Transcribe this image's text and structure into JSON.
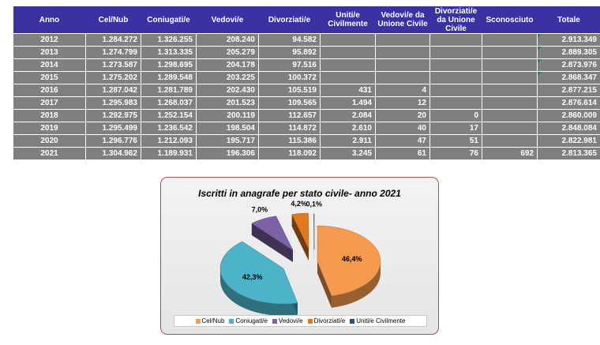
{
  "table": {
    "headers": [
      "Anno",
      "Cel/Nub",
      "Coniugati/e",
      "Vedovi/e",
      "Divorziati/e",
      "Uniti/e Civilmente",
      "Vedovi/e da Unione Civile",
      "Divorziati/e da Unione Civile",
      "Sconosciuto",
      "Totale"
    ],
    "rows": [
      [
        "2012",
        "1.284.272",
        "1.326.255",
        "208.240",
        "94.582",
        "",
        "",
        "",
        "",
        "2.913.349"
      ],
      [
        "2013",
        "1.274.799",
        "1.313.335",
        "205.279",
        "95.892",
        "",
        "",
        "",
        "",
        "2.889.305"
      ],
      [
        "2014",
        "1.273.587",
        "1.298.695",
        "204.178",
        "97.516",
        "",
        "",
        "",
        "",
        "2.873.976"
      ],
      [
        "2015",
        "1.275.202",
        "1.289.548",
        "203.225",
        "100.372",
        "",
        "",
        "",
        "",
        "2.868.347"
      ],
      [
        "2016",
        "1.287.042",
        "1.281.789",
        "202.430",
        "105.519",
        "431",
        "4",
        "",
        "",
        "2.877.215"
      ],
      [
        "2017",
        "1.295.983",
        "1.268.037",
        "201.523",
        "109.565",
        "1.494",
        "12",
        "",
        "",
        "2.876.614"
      ],
      [
        "2018",
        "1.292.975",
        "1.252.154",
        "200.119",
        "112.657",
        "2.084",
        "20",
        "0",
        "",
        "2.860.009"
      ],
      [
        "2019",
        "1.295.499",
        "1.236.542",
        "198.504",
        "114.872",
        "2.610",
        "40",
        "17",
        "",
        "2.848.084"
      ],
      [
        "2020",
        "1.296.776",
        "1.212.093",
        "195.717",
        "115.386",
        "2.911",
        "47",
        "51",
        "",
        "2.822.981"
      ],
      [
        "2021",
        "1.304.962",
        "1.189.931",
        "196.306",
        "118.092",
        "3.245",
        "61",
        "76",
        "692",
        "2.813.365"
      ]
    ]
  },
  "chart_data": {
    "type": "pie",
    "title": "Iscritti in anagrafe per stato civile- anno 2021",
    "slices": [
      {
        "name": "Cel/Nub",
        "value": 46.4,
        "label": "46,4%",
        "color": "#f59a4f"
      },
      {
        "name": "Coniugati/e",
        "value": 42.3,
        "label": "42,3%",
        "color": "#4db3c8"
      },
      {
        "name": "Vedovi/e",
        "value": 7.0,
        "label": "7,0%",
        "color": "#7e62a8"
      },
      {
        "name": "Divorziati/e",
        "value": 4.2,
        "label": "4,2%",
        "color": "#e07a1c"
      },
      {
        "name": "Uniti/e Civilmente",
        "value": 0.1,
        "label": "0,1%",
        "color": "#25526b"
      }
    ],
    "legend_position": "bottom",
    "exploded": true,
    "three_d": true
  }
}
